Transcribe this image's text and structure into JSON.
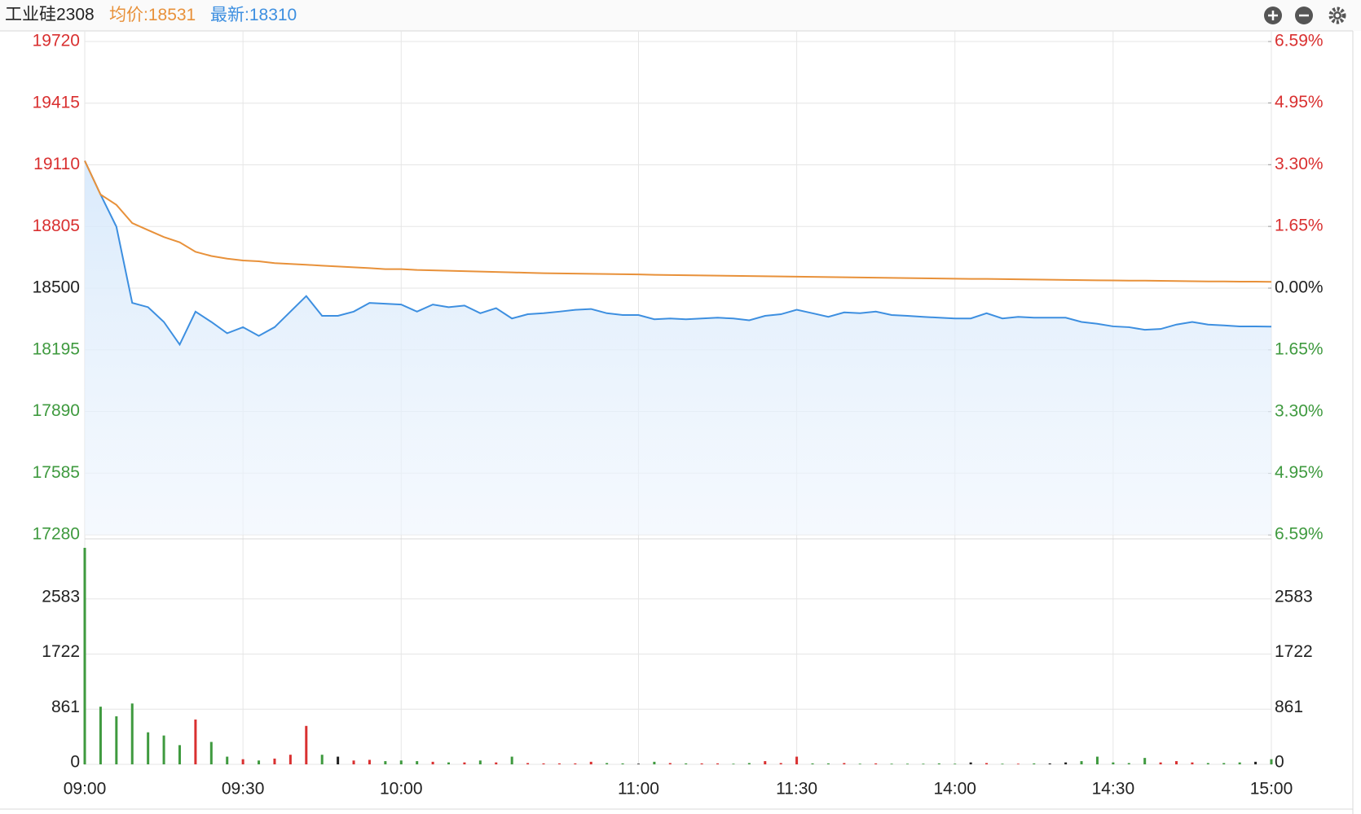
{
  "chart_data": {
    "type": "line",
    "title": "工业硅2308",
    "header": [
      {
        "label": "均价:",
        "value": 18531,
        "color": "#e8913a"
      },
      {
        "label": "最新:",
        "value": 18310,
        "color": "#3d8fe0"
      }
    ],
    "categories": [
      "09:00",
      null,
      null,
      null,
      null,
      null,
      null,
      null,
      null,
      null,
      "09:30",
      null,
      null,
      null,
      null,
      null,
      null,
      null,
      null,
      null,
      "10:00",
      null,
      null,
      null,
      null,
      null,
      null,
      null,
      null,
      null,
      null,
      null,
      null,
      null,
      null,
      "11:00",
      null,
      null,
      null,
      null,
      null,
      null,
      null,
      null,
      null,
      "11:30",
      null,
      null,
      null,
      null,
      null,
      null,
      null,
      null,
      null,
      "14:00",
      null,
      null,
      null,
      null,
      null,
      null,
      null,
      null,
      null,
      "14:30",
      null,
      null,
      null,
      null,
      null,
      null,
      null,
      null,
      null,
      "15:00"
    ],
    "series": [
      {
        "color": "#3d8fe0",
        "values": [
          19130,
          18963,
          18804,
          18427,
          18406,
          18333,
          18221,
          18384,
          18333,
          18277,
          18307,
          18264,
          18307,
          18384,
          18461,
          18363,
          18363,
          18384,
          18427,
          18423,
          18419,
          18384,
          18419,
          18406,
          18414,
          18376,
          18401,
          18350,
          18371,
          18376,
          18384,
          18393,
          18397,
          18376,
          18367,
          18367,
          18346,
          18350,
          18346,
          18350,
          18354,
          18350,
          18341,
          18363,
          18371,
          18393,
          18376,
          18358,
          18380,
          18376,
          18384,
          18367,
          18363,
          18358,
          18354,
          18350,
          18350,
          18376,
          18350,
          18358,
          18354,
          18354,
          18354,
          18333,
          18324,
          18311,
          18307,
          18294,
          18298,
          18320,
          18333,
          18320,
          18316,
          18311,
          18311,
          18310
        ]
      },
      {
        "color": "#e8913a",
        "values": [
          19130,
          18963,
          18912,
          18822,
          18787,
          18753,
          18727,
          18680,
          18659,
          18646,
          18637,
          18633,
          18624,
          18620,
          18616,
          18611,
          18607,
          18603,
          18599,
          18594,
          18594,
          18590,
          18588,
          18586,
          18584,
          18582,
          18580,
          18578,
          18576,
          18574,
          18573,
          18572,
          18571,
          18570,
          18569,
          18568,
          18566,
          18565,
          18564,
          18563,
          18562,
          18561,
          18560,
          18559,
          18558,
          18557,
          18556,
          18555,
          18554,
          18553,
          18552,
          18551,
          18550,
          18549,
          18548,
          18547,
          18546,
          18546,
          18545,
          18544,
          18543,
          18542,
          18541,
          18540,
          18539,
          18538,
          18537,
          18537,
          18536,
          18535,
          18534,
          18533,
          18533,
          18532,
          18532,
          18531
        ]
      }
    ],
    "ylim": [
      17280,
      19720
    ],
    "yticks": [
      17280,
      17585,
      17890,
      18195,
      18500,
      18805,
      19110,
      19415,
      19720
    ],
    "y2lim": [
      -6.59,
      6.59
    ],
    "y2ticks": [
      {
        "value": -6.59,
        "label": "6.59%"
      },
      {
        "value": -4.95,
        "label": "4.95%"
      },
      {
        "value": -3.3,
        "label": "3.30%"
      },
      {
        "value": -1.65,
        "label": "1.65%"
      },
      {
        "value": 0,
        "label": "0.00%"
      },
      {
        "value": 1.65,
        "label": "1.65%"
      },
      {
        "value": 3.3,
        "label": "3.30%"
      },
      {
        "value": 4.95,
        "label": "4.95%"
      },
      {
        "value": 6.59,
        "label": "6.59%"
      }
    ],
    "up_color": "#d93030",
    "down_color": "#3f9a3f",
    "flat_color": "#222222",
    "grid": true,
    "volume": {
      "values": [
        3380,
        900,
        750,
        950,
        500,
        450,
        300,
        700,
        350,
        120,
        80,
        60,
        90,
        150,
        600,
        150,
        120,
        60,
        70,
        50,
        60,
        50,
        40,
        30,
        30,
        60,
        30,
        120,
        20,
        15,
        15,
        15,
        40,
        20,
        15,
        10,
        40,
        20,
        15,
        15,
        15,
        10,
        20,
        50,
        20,
        120,
        15,
        15,
        20,
        10,
        15,
        10,
        10,
        10,
        15,
        10,
        30,
        20,
        10,
        10,
        15,
        15,
        30,
        50,
        120,
        30,
        20,
        100,
        30,
        50,
        30,
        20,
        20,
        30,
        40,
        80
      ],
      "ylim": [
        0,
        3444
      ],
      "yticks": [
        0,
        861,
        1722,
        2583
      ]
    }
  }
}
